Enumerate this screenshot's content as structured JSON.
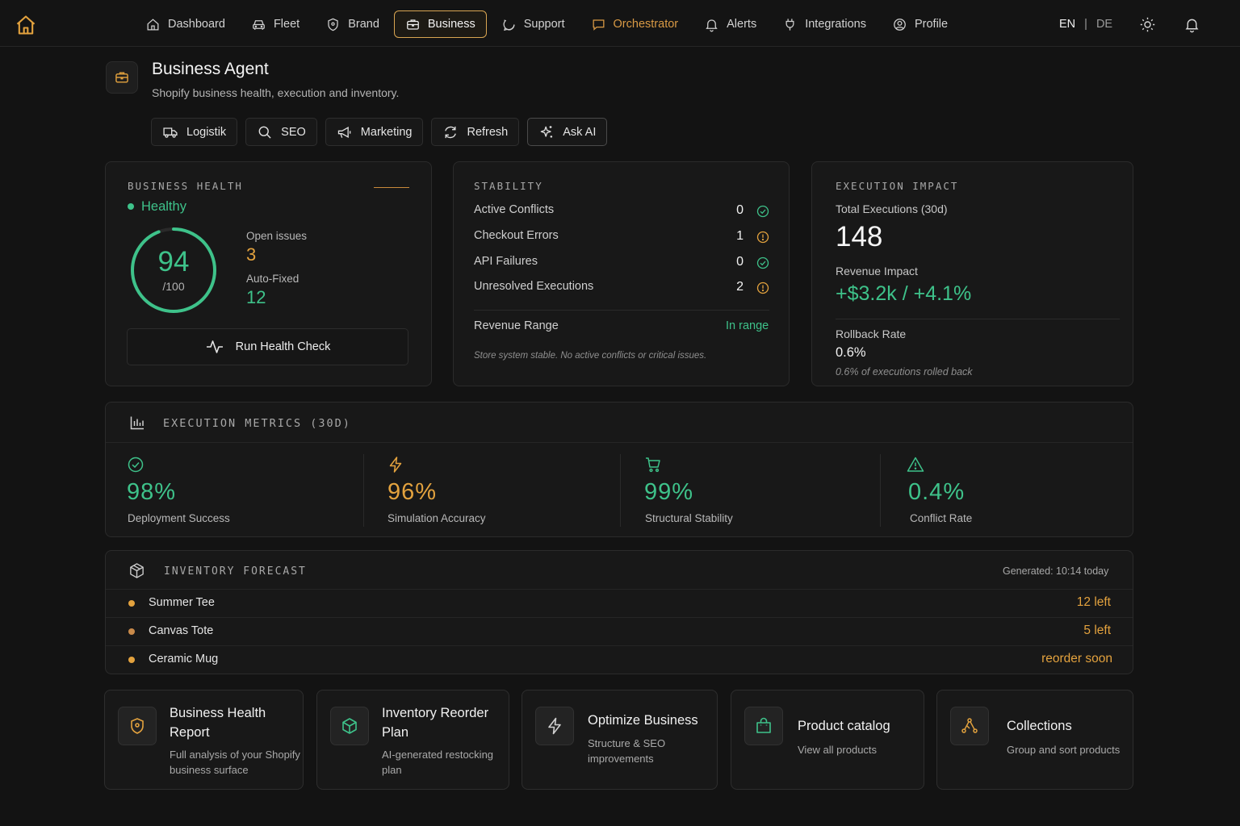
{
  "nav": {
    "items": [
      {
        "label": "Dashboard"
      },
      {
        "label": "Fleet"
      },
      {
        "label": "Brand"
      },
      {
        "label": "Business"
      },
      {
        "label": "Support"
      },
      {
        "label": "Orchestrator"
      },
      {
        "label": "Alerts"
      },
      {
        "label": "Integrations"
      },
      {
        "label": "Profile"
      }
    ],
    "active": "Business",
    "lang": {
      "en": "EN",
      "sep": "|",
      "de": "DE"
    }
  },
  "agent": {
    "title": "Business Agent",
    "subtitle": "Shopify business health, execution and inventory."
  },
  "actions": [
    {
      "label": "Logistik",
      "icon": "truck-icon"
    },
    {
      "label": "SEO",
      "icon": "search-icon"
    },
    {
      "label": "Marketing",
      "icon": "megaphone-icon"
    },
    {
      "label": "Refresh",
      "icon": "refresh-icon"
    },
    {
      "label": "Ask AI",
      "icon": "sparkle-icon"
    }
  ],
  "health": {
    "caption": "BUSINESS HEALTH",
    "status": "Healthy",
    "score": "94",
    "score_max": "/100",
    "score_fraction": 0.94,
    "open_issues_label": "Open issues",
    "open_issues": "3",
    "auto_fixed_label": "Auto-Fixed",
    "auto_fixed": "12",
    "run_label": "Run Health Check"
  },
  "stability": {
    "caption": "STABILITY",
    "rows": [
      {
        "label": "Active Conflicts",
        "value": "0",
        "status": "ok"
      },
      {
        "label": "Checkout Errors",
        "value": "1",
        "status": "warn"
      },
      {
        "label": "API Failures",
        "value": "0",
        "status": "ok"
      },
      {
        "label": "Unresolved Executions",
        "value": "2",
        "status": "warn"
      }
    ],
    "range_label": "Revenue Range",
    "range_value": "In range",
    "note": "Store system stable. No active conflicts or critical issues."
  },
  "impact": {
    "caption": "EXECUTION IMPACT",
    "total_label": "Total Executions (30d)",
    "total": "148",
    "revenue_label": "Revenue Impact",
    "revenue": "+$3.2k / +4.1%",
    "rollback_label": "Rollback Rate",
    "rollback": "0.6%",
    "rollback_note": "0.6% of executions rolled back"
  },
  "metrics": {
    "caption": "EXECUTION METRICS (30D)",
    "items": [
      {
        "value": "98%",
        "label": "Deployment Success",
        "color": "#3ec28a"
      },
      {
        "value": "96%",
        "label": "Simulation Accuracy",
        "color": "#e3a23e"
      },
      {
        "value": "99%",
        "label": "Structural Stability",
        "color": "#3ec28a"
      },
      {
        "value": "0.4%",
        "label": "Conflict Rate",
        "color": "#3ec28a"
      }
    ]
  },
  "inventory": {
    "caption": "INVENTORY FORECAST",
    "generated_label": "Generated:",
    "generated_time": "10:14 today",
    "rows": [
      {
        "name": "Summer Tee",
        "value": "12 left",
        "dot": "#e3a23e"
      },
      {
        "name": "Canvas Tote",
        "value": "5 left",
        "dot": "#c98a4a"
      },
      {
        "name": "Ceramic Mug",
        "value": "reorder soon",
        "dot": "#e3a23e"
      }
    ]
  },
  "tiles": [
    {
      "title_1": "Business Health",
      "title_2": "Report",
      "desc_1": "Full analysis of your Shopify",
      "desc_2": "business surface",
      "icon": "shield-icon"
    },
    {
      "title_1": "Inventory Reorder",
      "title_2": "Plan",
      "desc_1": "AI-generated restocking",
      "desc_2": "plan",
      "icon": "box-icon"
    },
    {
      "title_1": "Optimize Business",
      "desc_1": "Structure & SEO",
      "desc_2": "improvements",
      "icon": "bolt-icon"
    },
    {
      "title_1": "Product catalog",
      "desc_1": "View all products",
      "icon": "bag-icon"
    },
    {
      "title_1": "Collections",
      "desc_1": "Group and sort products",
      "icon": "graph-icon"
    }
  ],
  "colors": {
    "green": "#3ec28a",
    "orange": "#e3a23e",
    "accent": "#d9a552"
  }
}
